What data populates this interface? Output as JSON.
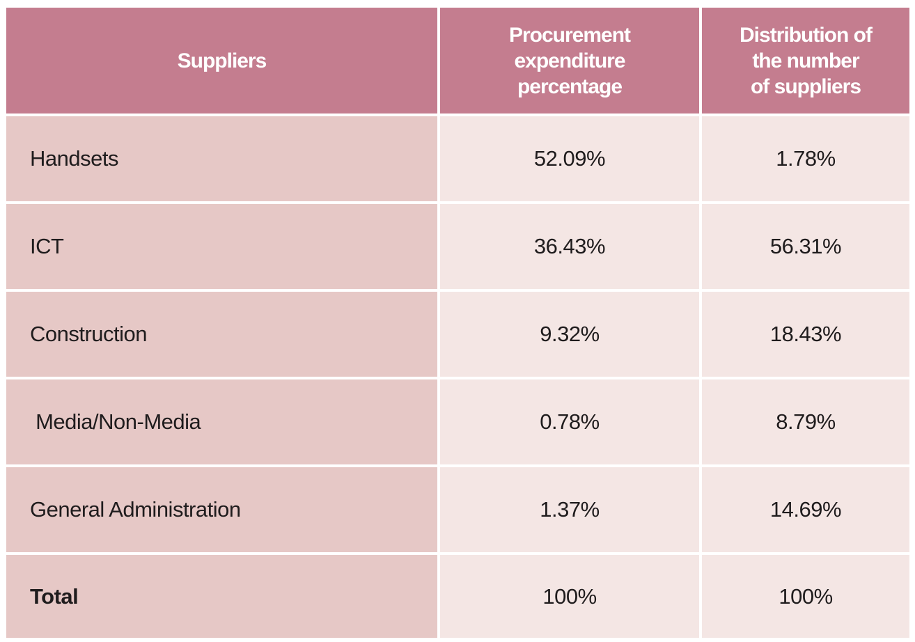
{
  "table": {
    "headers": [
      "Suppliers",
      "Procurement\nexpenditure\npercentage",
      "Distribution of\nthe number\nof suppliers"
    ],
    "rows": [
      {
        "supplier": "Handsets",
        "expenditure": "52.09%",
        "distribution": "1.78%"
      },
      {
        "supplier": "ICT",
        "expenditure": "36.43%",
        "distribution": "56.31%"
      },
      {
        "supplier": "Construction",
        "expenditure": "9.32%",
        "distribution": "18.43%"
      },
      {
        "supplier": " Media/Non-Media",
        "expenditure": "0.78%",
        "distribution": "8.79%"
      },
      {
        "supplier": "General Administration",
        "expenditure": "1.37%",
        "distribution": "14.69%"
      },
      {
        "supplier": "Total",
        "expenditure": "100%",
        "distribution": "100%"
      }
    ]
  },
  "colors": {
    "header_bg": "#c47d8f",
    "first_col_bg": "#e6c8c6",
    "value_bg": "#f4e6e4",
    "text": "#1f1c1d"
  }
}
